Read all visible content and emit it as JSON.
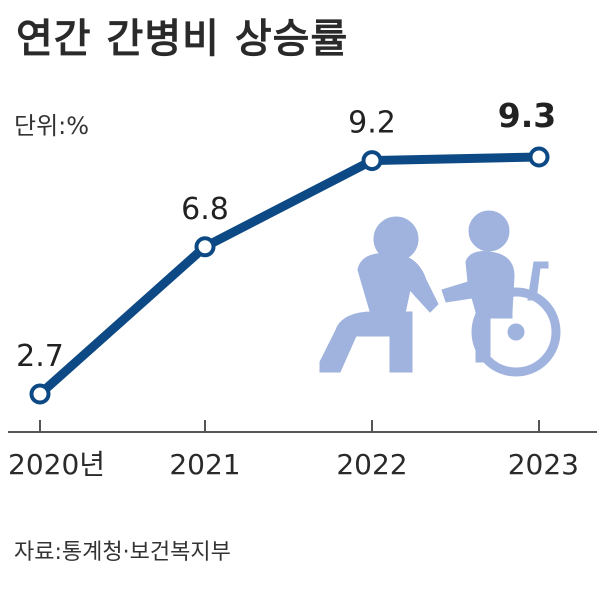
{
  "header": {
    "title": "연간 간병비 상승률",
    "unit": "단위:%"
  },
  "footer": {
    "source": "자료:통계청·보건복지부"
  },
  "colors": {
    "line": "#0d4a85",
    "marker_fill": "#ffffff",
    "axis": "#555555",
    "illustration": "#9fb3de"
  },
  "illustration": {
    "icon": "caregiver-wheelchair-icon"
  },
  "chart_data": {
    "type": "line",
    "title": "연간 간병비 상승률",
    "unit": "단위:%",
    "categories": [
      "2020년",
      "2021",
      "2022",
      "2023"
    ],
    "values": [
      2.7,
      6.8,
      9.2,
      9.3
    ],
    "value_labels": [
      "2.7",
      "6.8",
      "9.2",
      "9.3"
    ],
    "ylim": [
      2.7,
      9.3
    ],
    "grid": false,
    "legend": "none",
    "emphasized_point": 3
  }
}
